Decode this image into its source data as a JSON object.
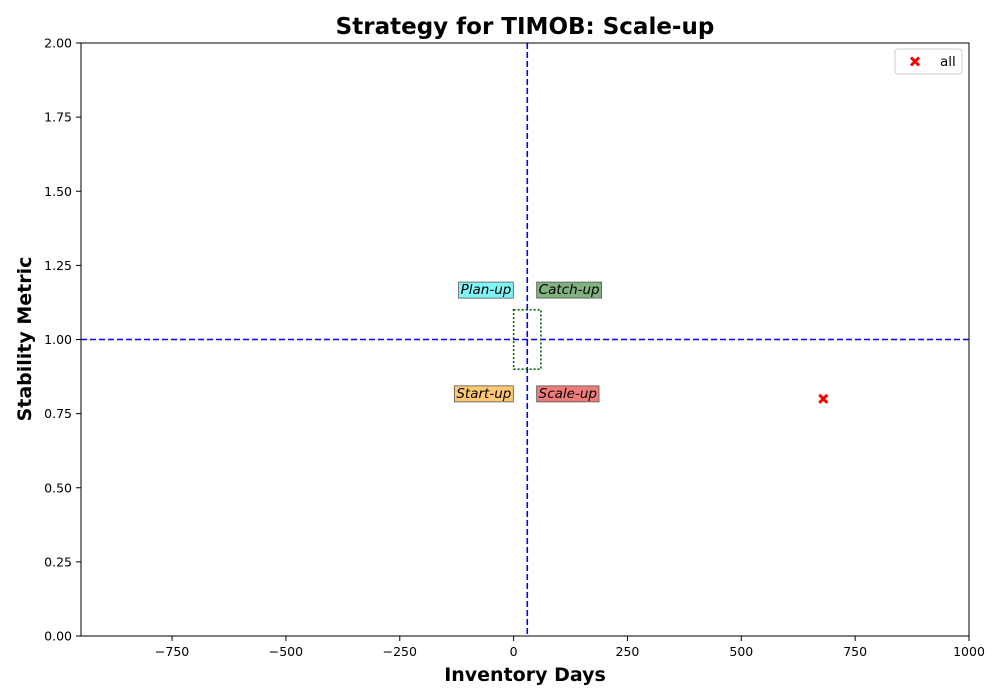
{
  "chart_data": {
    "type": "scatter",
    "title": "Strategy for TIMOB: Scale-up",
    "xlabel": "Inventory Days",
    "ylabel": "Stability Metric",
    "xlim": [
      -950,
      1000
    ],
    "ylim": [
      0,
      2
    ],
    "x_ticks": [
      -750,
      -500,
      -250,
      0,
      250,
      500,
      750,
      1000
    ],
    "x_tick_labels": [
      "−750",
      "−500",
      "−250",
      "0",
      "250",
      "500",
      "750",
      "1000"
    ],
    "y_ticks": [
      0,
      0.25,
      0.5,
      0.75,
      1.0,
      1.25,
      1.5,
      1.75,
      2.0
    ],
    "y_tick_labels": [
      "0.00",
      "0.25",
      "0.50",
      "0.75",
      "1.00",
      "1.25",
      "1.50",
      "1.75",
      "2.00"
    ],
    "grid": false,
    "reference_lines": {
      "vertical_x": 30,
      "horizontal_y": 1.0,
      "color": "#0000ff"
    },
    "target_box": {
      "x": [
        0,
        60
      ],
      "y": [
        0.9,
        1.1
      ],
      "color": "#006400"
    },
    "quadrant_labels": [
      {
        "text": "Plan-up",
        "x": -5,
        "y": 1.17,
        "anchor": "end",
        "color": "#7ff5f5"
      },
      {
        "text": "Catch-up",
        "x": 55,
        "y": 1.17,
        "anchor": "start",
        "color": "#7fb27f"
      },
      {
        "text": "Start-up",
        "x": -5,
        "y": 0.82,
        "anchor": "end",
        "color": "#ffc971"
      },
      {
        "text": "Scale-up",
        "x": 55,
        "y": 0.82,
        "anchor": "start",
        "color": "#ef7b7b"
      }
    ],
    "series": [
      {
        "name": "all",
        "marker": "x",
        "color": "#ff0000",
        "points": [
          {
            "x": 680,
            "y": 0.8
          }
        ]
      }
    ],
    "legend": {
      "placement": "top-right"
    }
  }
}
